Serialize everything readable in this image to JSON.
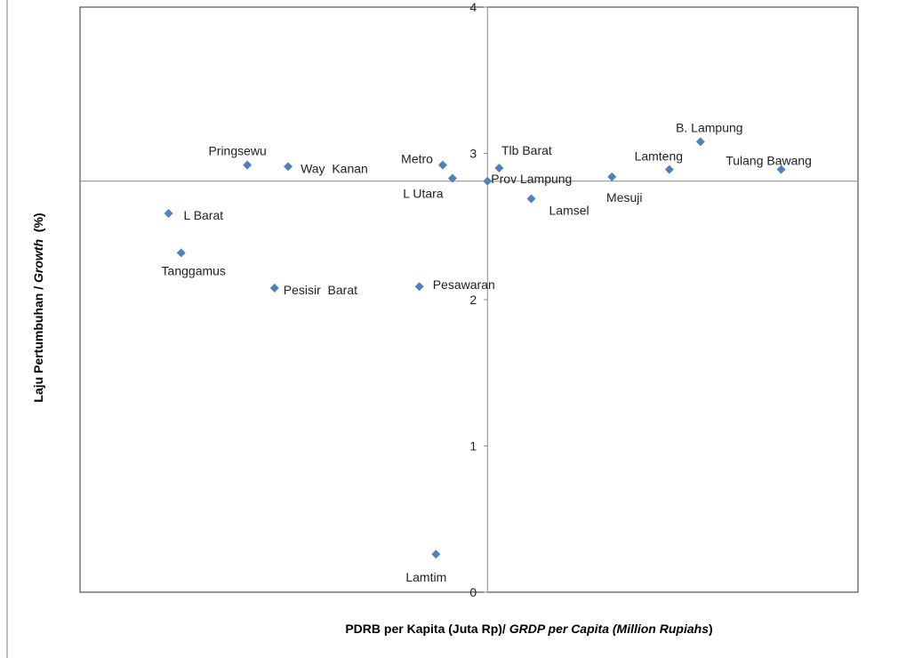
{
  "chart_data": {
    "type": "scatter",
    "x_label": [
      "PDRB per Kapita (Juta Rp)/ ",
      "GRDP per Capita (Million Rupiahs",
      ")"
    ],
    "y_label": [
      "Laju Pertumbuhan / ",
      "Growth",
      "  (%)"
    ],
    "labels": [
      "Pringsewu",
      "Way  Kanan",
      "Metro",
      "L Utara",
      "Prov Lampung",
      "Tlb Barat",
      "Lamsel",
      "Mesuji",
      "Lamteng",
      "B. Lampung",
      "Tulang Bawang",
      "L Barat",
      "Tanggamus",
      "Pesisir  Barat",
      "Pesawaran",
      "Lamtim"
    ],
    "x": [
      1.72,
      2.14,
      3.73,
      3.83,
      4.19,
      4.31,
      4.64,
      5.47,
      6.06,
      6.38,
      7.21,
      0.91,
      1.04,
      2.0,
      3.49,
      3.66
    ],
    "values": [
      2.92,
      2.91,
      2.92,
      2.83,
      2.81,
      2.9,
      2.69,
      2.84,
      2.89,
      3.08,
      2.89,
      2.59,
      2.32,
      2.08,
      2.09,
      0.26
    ],
    "color": "#4f81bd",
    "xlim": [
      0,
      8
    ],
    "ylim": [
      0,
      4
    ],
    "yticks": [
      0,
      1,
      2,
      3,
      4
    ],
    "xcross": 4.19,
    "ycross": 2.81
  }
}
